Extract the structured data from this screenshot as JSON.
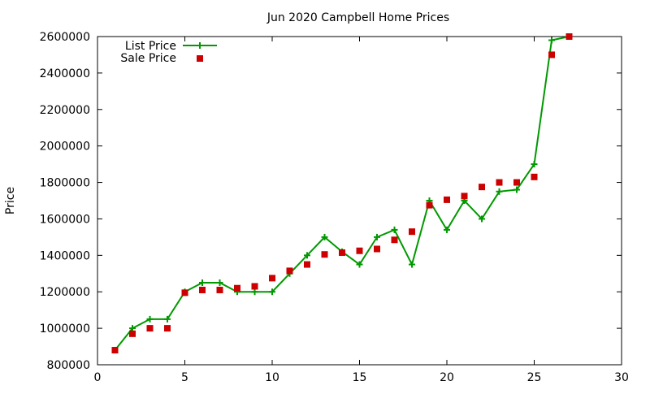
{
  "chart_data": {
    "type": "line",
    "title": "Jun 2020 Campbell Home Prices",
    "xlabel": "",
    "ylabel": "Price",
    "xlim": [
      0,
      30
    ],
    "ylim": [
      800000,
      2600000
    ],
    "xticks": [
      0,
      5,
      10,
      15,
      20,
      25,
      30
    ],
    "yticks": [
      800000,
      1000000,
      1200000,
      1400000,
      1600000,
      1800000,
      2000000,
      2200000,
      2400000,
      2600000
    ],
    "grid": false,
    "legend_position": "top-left",
    "series": [
      {
        "name": "List Price",
        "style": "line-with-plus-markers",
        "color": "#009900",
        "x": [
          1,
          2,
          3,
          4,
          5,
          6,
          7,
          8,
          9,
          10,
          11,
          12,
          13,
          14,
          15,
          16,
          17,
          18,
          19,
          20,
          21,
          22,
          23,
          24,
          25,
          26,
          27
        ],
        "y": [
          880000,
          1000000,
          1050000,
          1050000,
          1200000,
          1250000,
          1250000,
          1200000,
          1200000,
          1200000,
          1300000,
          1400000,
          1500000,
          1420000,
          1350000,
          1500000,
          1540000,
          1350000,
          1700000,
          1540000,
          1700000,
          1600000,
          1750000,
          1760000,
          1900000,
          2580000,
          2600000
        ]
      },
      {
        "name": "Sale Price",
        "style": "square-markers",
        "color": "#cc0000",
        "x": [
          1,
          2,
          3,
          4,
          5,
          6,
          7,
          8,
          9,
          10,
          11,
          12,
          13,
          14,
          15,
          16,
          17,
          18,
          19,
          20,
          21,
          22,
          23,
          24,
          25,
          26,
          27
        ],
        "y": [
          880000,
          970000,
          1000000,
          1000000,
          1195000,
          1210000,
          1210000,
          1220000,
          1230000,
          1275000,
          1315000,
          1350000,
          1405000,
          1415000,
          1425000,
          1435000,
          1485000,
          1530000,
          1675000,
          1705000,
          1725000,
          1775000,
          1800000,
          1800000,
          1830000,
          2500000,
          2600000
        ]
      }
    ]
  }
}
